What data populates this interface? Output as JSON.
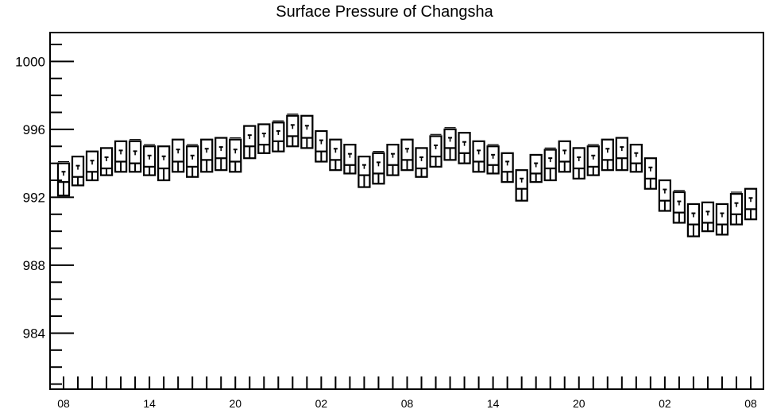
{
  "chart_data": {
    "type": "box",
    "title": "Surface Pressure of Changsha",
    "xlabel": "",
    "ylabel": "",
    "ylim": [
      980.7,
      1001.7
    ],
    "y_ticks": [
      984,
      988,
      992,
      996,
      1000
    ],
    "x_tick_labels": [
      "08",
      "14",
      "20",
      "02",
      "08",
      "14",
      "20",
      "02",
      "08"
    ],
    "x_tick_label_steps": [
      0,
      6,
      12,
      18,
      24,
      30,
      36,
      42,
      48
    ],
    "n_steps": 48,
    "grid": false,
    "legend": "none",
    "series": [
      {
        "step": 0,
        "min": 992.1,
        "q1": 992.1,
        "median": 992.9,
        "q3": 994.0,
        "max": 994.1
      },
      {
        "step": 1,
        "min": 992.7,
        "q1": 992.7,
        "median": 993.2,
        "q3": 994.4,
        "max": 994.4
      },
      {
        "step": 2,
        "min": 993.0,
        "q1": 993.0,
        "median": 993.5,
        "q3": 994.7,
        "max": 994.7
      },
      {
        "step": 3,
        "min": 993.3,
        "q1": 993.3,
        "median": 993.7,
        "q3": 994.9,
        "max": 994.9
      },
      {
        "step": 4,
        "min": 993.5,
        "q1": 993.5,
        "median": 994.1,
        "q3": 995.3,
        "max": 995.3
      },
      {
        "step": 5,
        "min": 993.5,
        "q1": 993.5,
        "median": 994.0,
        "q3": 995.3,
        "max": 995.4
      },
      {
        "step": 6,
        "min": 993.3,
        "q1": 993.3,
        "median": 993.8,
        "q3": 995.0,
        "max": 995.1
      },
      {
        "step": 7,
        "min": 993.0,
        "q1": 993.0,
        "median": 993.7,
        "q3": 995.0,
        "max": 995.0
      },
      {
        "step": 8,
        "min": 993.5,
        "q1": 993.5,
        "median": 994.1,
        "q3": 995.4,
        "max": 995.4
      },
      {
        "step": 9,
        "min": 993.2,
        "q1": 993.2,
        "median": 993.8,
        "q3": 995.0,
        "max": 995.1
      },
      {
        "step": 10,
        "min": 993.5,
        "q1": 993.5,
        "median": 994.2,
        "q3": 995.4,
        "max": 995.4
      },
      {
        "step": 11,
        "min": 993.6,
        "q1": 993.6,
        "median": 994.3,
        "q3": 995.5,
        "max": 995.5
      },
      {
        "step": 12,
        "min": 993.5,
        "q1": 993.5,
        "median": 994.1,
        "q3": 995.4,
        "max": 995.5
      },
      {
        "step": 13,
        "min": 994.3,
        "q1": 994.3,
        "median": 995.0,
        "q3": 996.2,
        "max": 996.2
      },
      {
        "step": 14,
        "min": 994.6,
        "q1": 994.6,
        "median": 995.1,
        "q3": 996.3,
        "max": 996.3
      },
      {
        "step": 15,
        "min": 994.7,
        "q1": 994.7,
        "median": 995.3,
        "q3": 996.4,
        "max": 996.5
      },
      {
        "step": 16,
        "min": 995.0,
        "q1": 995.0,
        "median": 995.6,
        "q3": 996.8,
        "max": 996.9
      },
      {
        "step": 17,
        "min": 994.9,
        "q1": 994.9,
        "median": 995.5,
        "q3": 996.8,
        "max": 996.8
      },
      {
        "step": 18,
        "min": 994.1,
        "q1": 994.1,
        "median": 994.7,
        "q3": 995.9,
        "max": 995.9
      },
      {
        "step": 19,
        "min": 993.6,
        "q1": 993.6,
        "median": 994.2,
        "q3": 995.4,
        "max": 995.4
      },
      {
        "step": 20,
        "min": 993.4,
        "q1": 993.4,
        "median": 993.9,
        "q3": 995.1,
        "max": 995.1
      },
      {
        "step": 21,
        "min": 992.6,
        "q1": 992.6,
        "median": 993.3,
        "q3": 994.4,
        "max": 994.4
      },
      {
        "step": 22,
        "min": 992.8,
        "q1": 992.8,
        "median": 993.4,
        "q3": 994.6,
        "max": 994.7
      },
      {
        "step": 23,
        "min": 993.3,
        "q1": 993.3,
        "median": 993.9,
        "q3": 995.1,
        "max": 995.1
      },
      {
        "step": 24,
        "min": 993.6,
        "q1": 993.6,
        "median": 994.2,
        "q3": 995.4,
        "max": 995.4
      },
      {
        "step": 25,
        "min": 993.2,
        "q1": 993.2,
        "median": 993.7,
        "q3": 994.9,
        "max": 994.9
      },
      {
        "step": 26,
        "min": 993.8,
        "q1": 993.8,
        "median": 994.4,
        "q3": 995.6,
        "max": 995.7
      },
      {
        "step": 27,
        "min": 994.2,
        "q1": 994.2,
        "median": 994.9,
        "q3": 996.0,
        "max": 996.1
      },
      {
        "step": 28,
        "min": 994.0,
        "q1": 994.0,
        "median": 994.6,
        "q3": 995.8,
        "max": 995.8
      },
      {
        "step": 29,
        "min": 993.5,
        "q1": 993.5,
        "median": 994.1,
        "q3": 995.3,
        "max": 995.3
      },
      {
        "step": 30,
        "min": 993.4,
        "q1": 993.4,
        "median": 993.9,
        "q3": 995.0,
        "max": 995.1
      },
      {
        "step": 31,
        "min": 992.9,
        "q1": 992.9,
        "median": 993.5,
        "q3": 994.6,
        "max": 994.6
      },
      {
        "step": 32,
        "min": 991.8,
        "q1": 991.8,
        "median": 992.5,
        "q3": 993.6,
        "max": 993.6
      },
      {
        "step": 33,
        "min": 992.9,
        "q1": 992.9,
        "median": 993.4,
        "q3": 994.5,
        "max": 994.5
      },
      {
        "step": 34,
        "min": 993.0,
        "q1": 993.0,
        "median": 993.7,
        "q3": 994.8,
        "max": 994.9
      },
      {
        "step": 35,
        "min": 993.5,
        "q1": 993.5,
        "median": 994.1,
        "q3": 995.3,
        "max": 995.3
      },
      {
        "step": 36,
        "min": 993.1,
        "q1": 993.1,
        "median": 993.7,
        "q3": 994.9,
        "max": 994.9
      },
      {
        "step": 37,
        "min": 993.3,
        "q1": 993.3,
        "median": 993.8,
        "q3": 995.0,
        "max": 995.1
      },
      {
        "step": 38,
        "min": 993.6,
        "q1": 993.6,
        "median": 994.2,
        "q3": 995.4,
        "max": 995.4
      },
      {
        "step": 39,
        "min": 993.6,
        "q1": 993.6,
        "median": 994.3,
        "q3": 995.5,
        "max": 995.5
      },
      {
        "step": 40,
        "min": 993.5,
        "q1": 993.5,
        "median": 994.0,
        "q3": 995.1,
        "max": 995.1
      },
      {
        "step": 41,
        "min": 992.5,
        "q1": 992.5,
        "median": 993.1,
        "q3": 994.3,
        "max": 994.3
      },
      {
        "step": 42,
        "min": 991.2,
        "q1": 991.2,
        "median": 991.8,
        "q3": 993.0,
        "max": 993.0
      },
      {
        "step": 43,
        "min": 990.5,
        "q1": 990.5,
        "median": 991.1,
        "q3": 992.3,
        "max": 992.4
      },
      {
        "step": 44,
        "min": 989.7,
        "q1": 989.7,
        "median": 990.4,
        "q3": 991.6,
        "max": 991.6
      },
      {
        "step": 45,
        "min": 990.0,
        "q1": 990.0,
        "median": 990.5,
        "q3": 991.7,
        "max": 991.7
      },
      {
        "step": 46,
        "min": 989.8,
        "q1": 989.8,
        "median": 990.4,
        "q3": 991.6,
        "max": 991.6
      },
      {
        "step": 47,
        "min": 990.4,
        "q1": 990.4,
        "median": 991.0,
        "q3": 992.2,
        "max": 992.3
      },
      {
        "step": 48,
        "min": 990.7,
        "q1": 990.7,
        "median": 991.3,
        "q3": 992.5,
        "max": 992.5
      }
    ]
  }
}
